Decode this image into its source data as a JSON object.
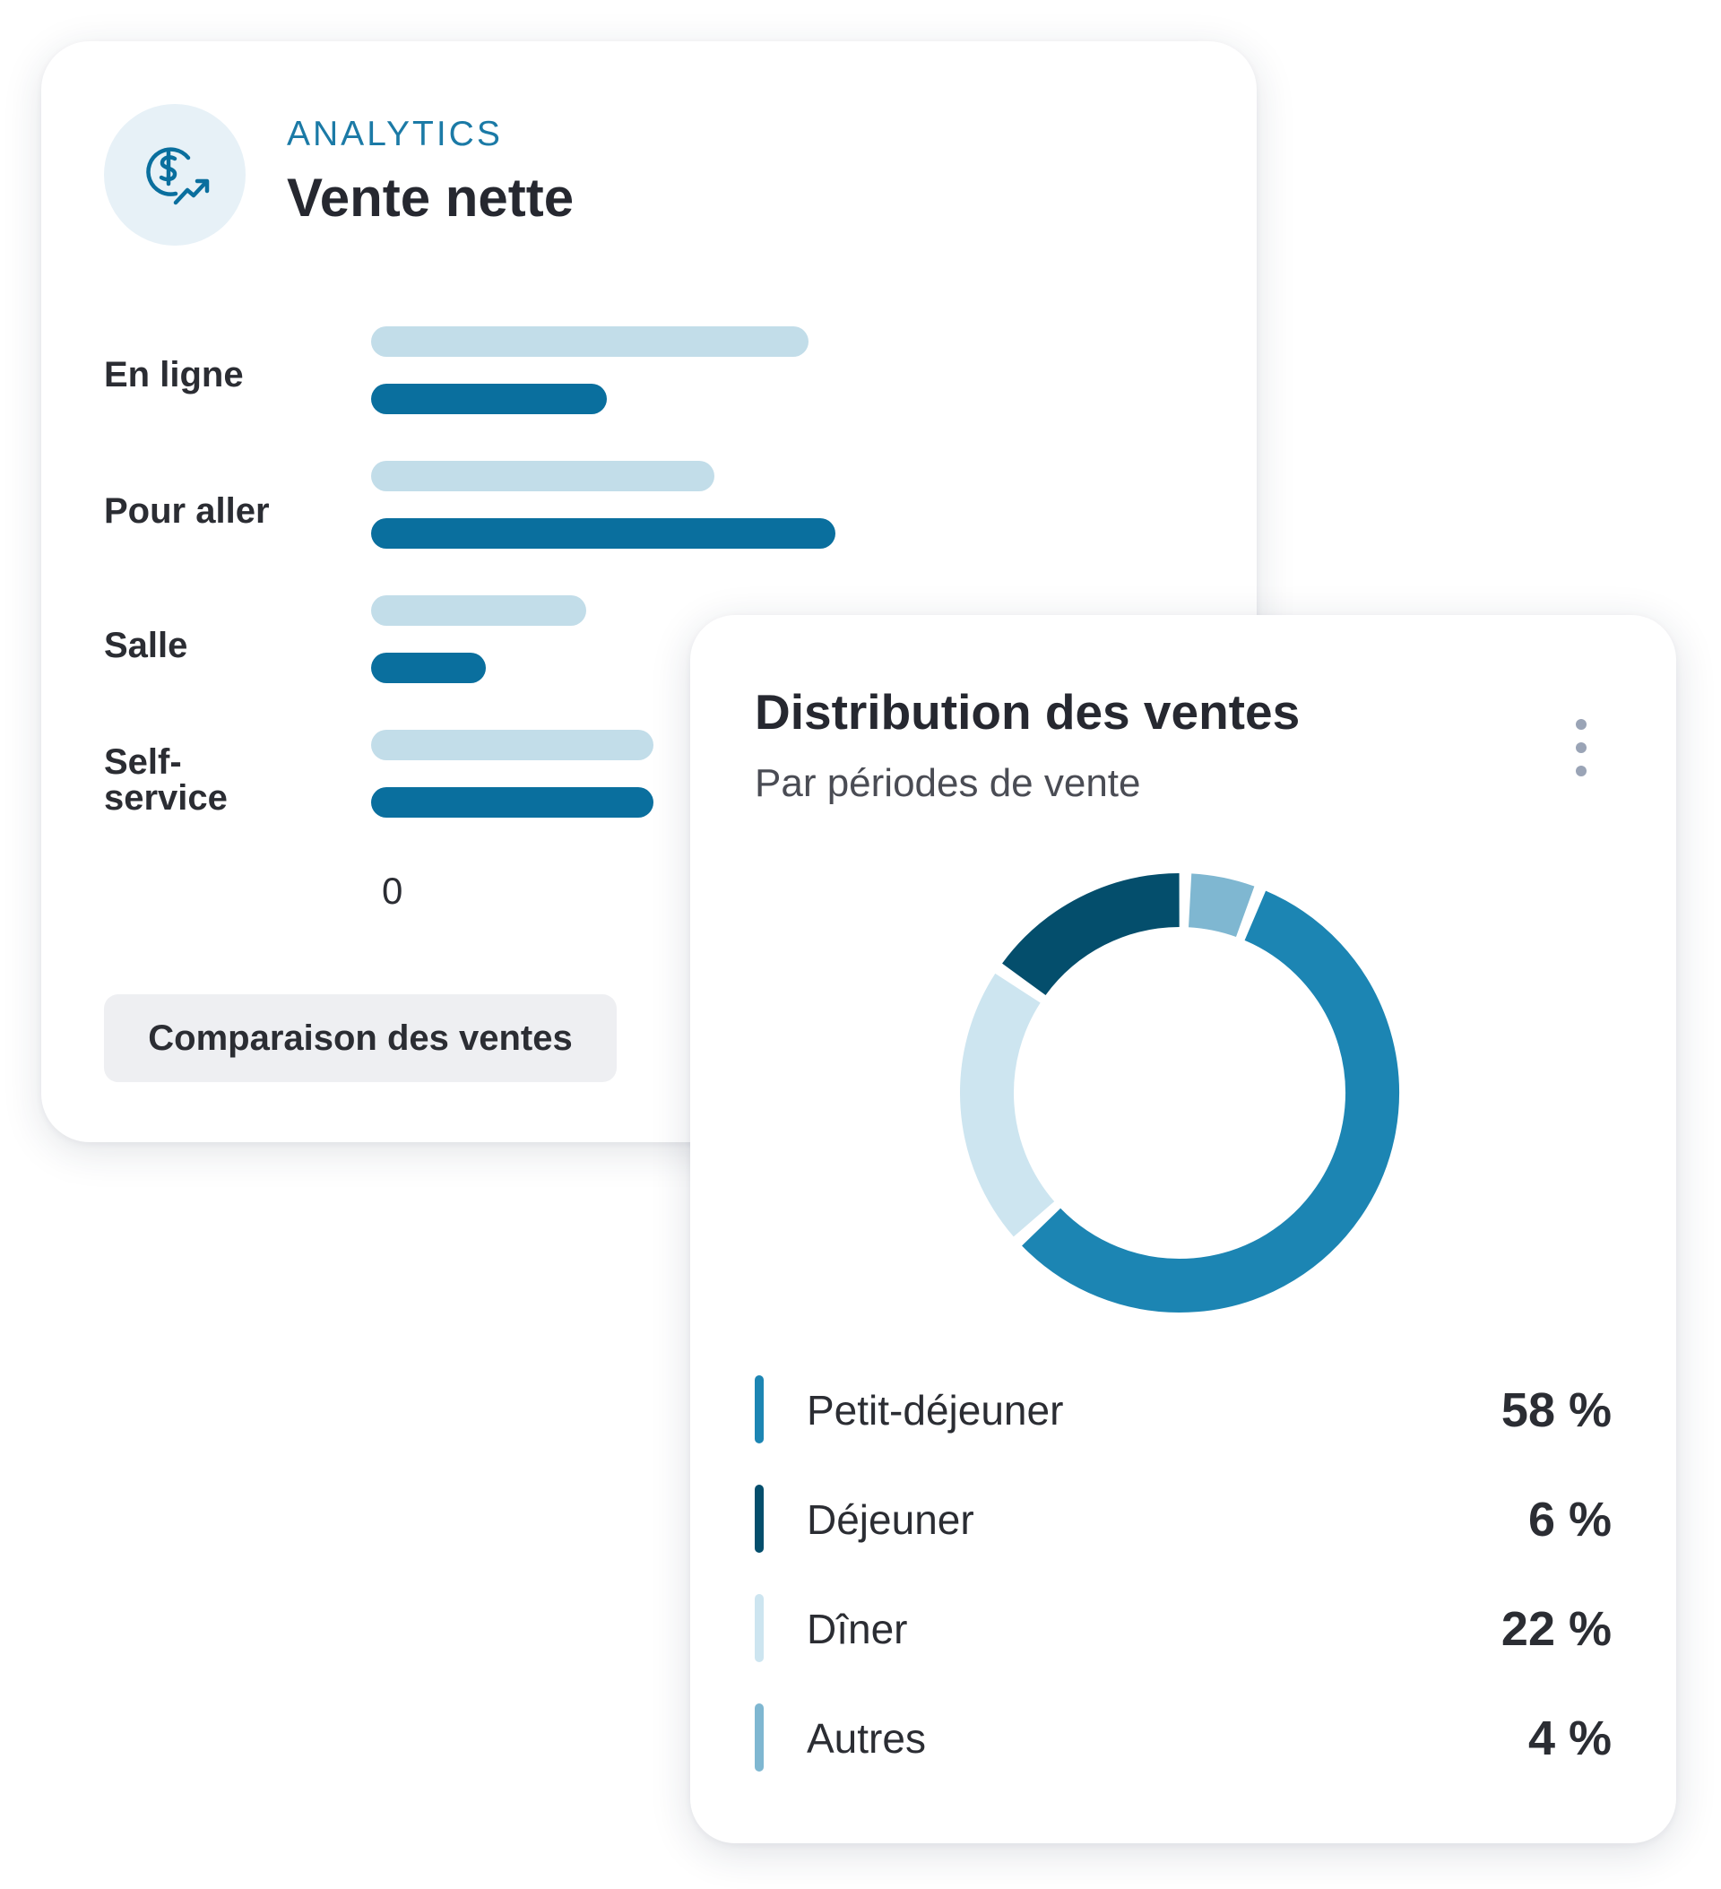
{
  "net_sales_card": {
    "eyebrow": "ANALYTICS",
    "title": "Vente nette",
    "icon": "dollar-growth-icon",
    "axis_tick": "0",
    "compare_button": "Comparaison des ventes"
  },
  "distribution_card": {
    "title": "Distribution des ventes",
    "subtitle": "Par périodes de vente",
    "menu_icon": "more-vertical-icon"
  },
  "colors": {
    "accent": "#1b7aa6",
    "bar_previous": "#c2dde9",
    "bar_current": "#0a6f9e",
    "petit_dejeuner": "#1c85b3",
    "dejeuner": "#044e6c",
    "diner": "#cde5f0",
    "autres": "#7fb7d1"
  },
  "chart_data": [
    {
      "type": "bar",
      "orientation": "horizontal",
      "categories": [
        "En ligne",
        "Pour aller",
        "Salle",
        "Self-service"
      ],
      "series": [
        {
          "values": [
            65,
            51,
            32,
            42
          ]
        },
        {
          "values": [
            35,
            69,
            17,
            42
          ]
        }
      ],
      "xlim": [
        0,
        100
      ],
      "tick_labels": [
        "0"
      ],
      "note": "values are relative bar lengths; no value scale is printed beyond the 0 tick"
    },
    {
      "type": "pie",
      "donut": true,
      "title": "Distribution des ventes",
      "subtitle": "Par périodes de vente",
      "categories": [
        "Petit-déjeuner",
        "Déjeuner",
        "Dîner",
        "Autres"
      ],
      "values": [
        58,
        6,
        22,
        4
      ],
      "value_labels": [
        "58 %",
        "6 %",
        "22 %",
        "4 %"
      ],
      "colors": [
        "#1c85b3",
        "#044e6c",
        "#cde5f0",
        "#7fb7d1"
      ],
      "legend": "below"
    }
  ]
}
